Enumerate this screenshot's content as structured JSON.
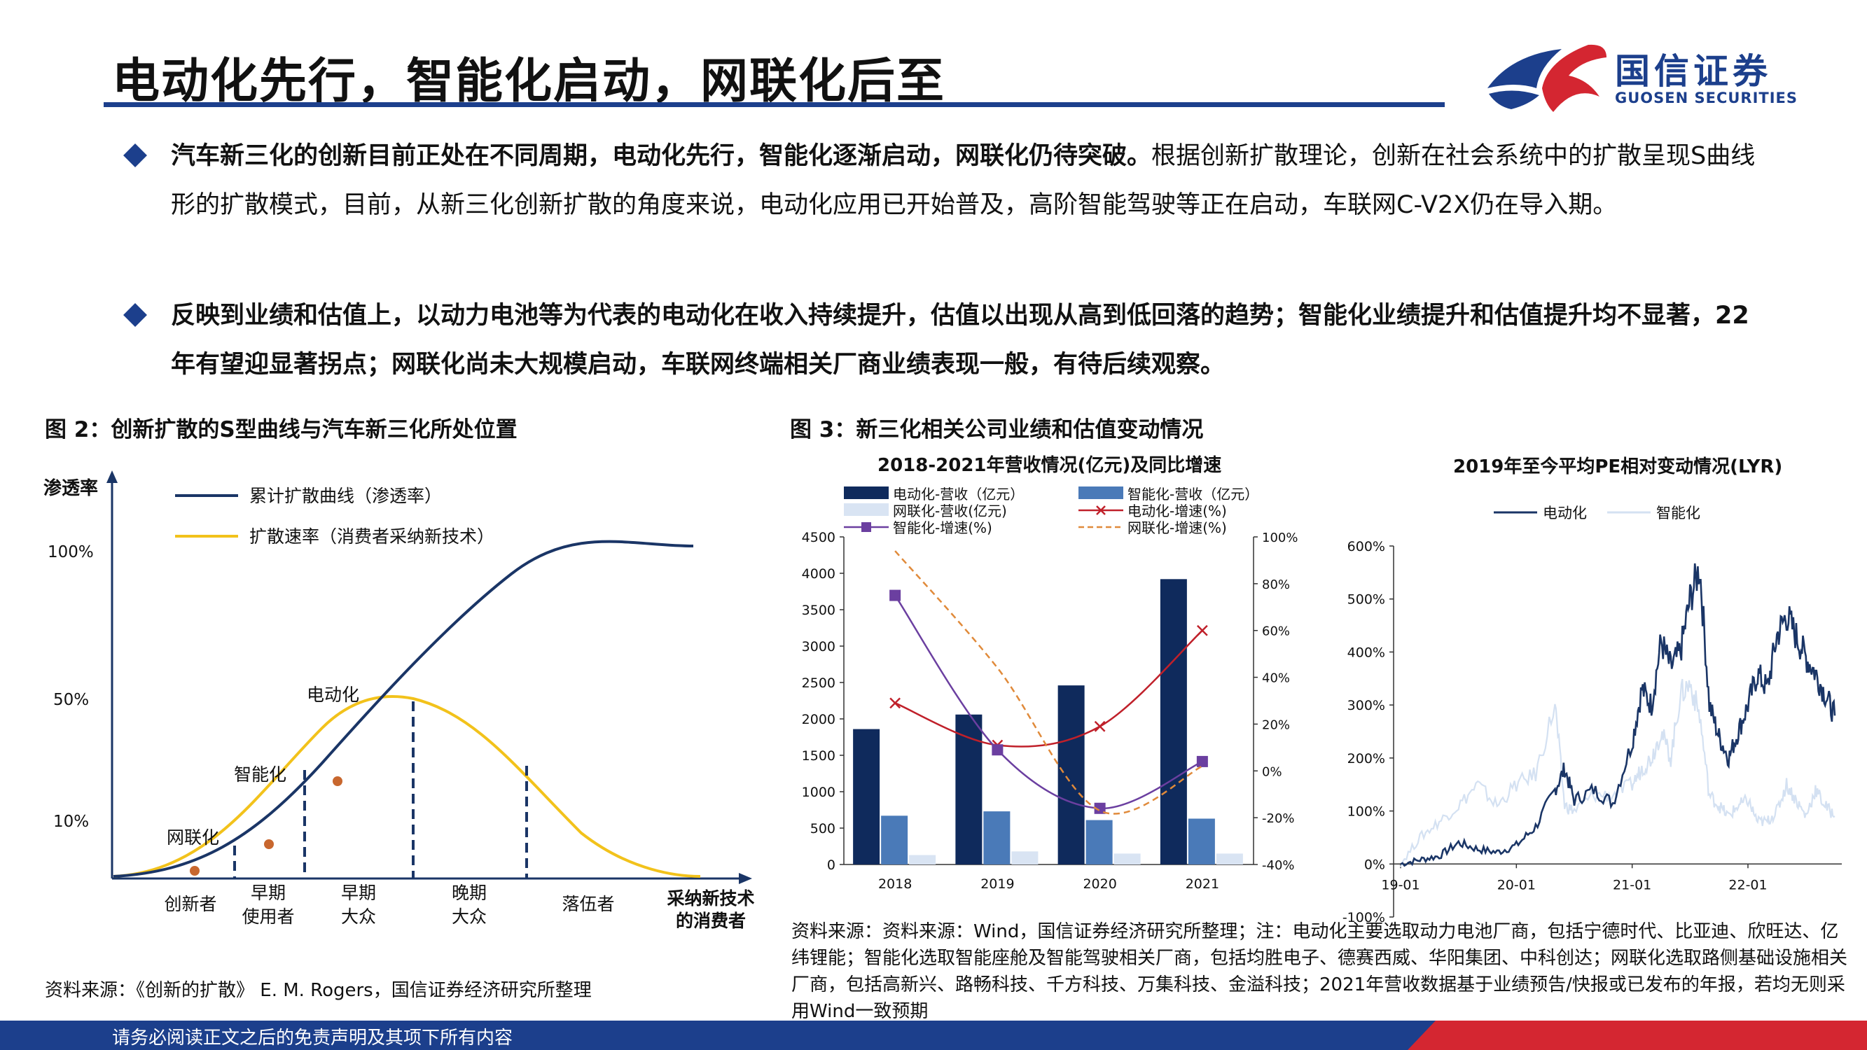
{
  "header": {
    "title": "电动化先行，智能化启动，网联化后至",
    "logo_cn": "国信证券",
    "logo_en": "GUOSEN SECURITIES"
  },
  "bullets": [
    {
      "bold": "汽车新三化的创新目前正处在不同周期，电动化先行，智能化逐渐启动，网联化仍待突破。",
      "text": "根据创新扩散理论，创新在社会系统中的扩散呈现S曲线形的扩散模式，目前，从新三化创新扩散的角度来说，电动化应用已开始普及，高阶智能驾驶等正在启动，车联网C-V2X仍在导入期。"
    },
    {
      "bold": "反映到业绩和估值上，以动力电池等为代表的电动化在收入持续提升，估值以出现从高到低回落的趋势；智能化业绩提升和估值提升均不显著，22年有望迎显著拐点；网联化尚未大规模启动，车联网终端相关厂商业绩表现一般，有待后续观察。",
      "text": ""
    }
  ],
  "figure2": {
    "title": "图 2：创新扩散的S型曲线与汽车新三化所处位置",
    "y_axis_label": "渗透率",
    "y_ticks": [
      "100%",
      "50%",
      "10%"
    ],
    "legend": [
      "累计扩散曲线（渗透率）",
      "扩散速率（消费者采纳新技术）"
    ],
    "markers": [
      "电动化",
      "智能化",
      "网联化"
    ],
    "segments": [
      "创新者",
      "早期\n使用者",
      "早期\n大众",
      "晚期\n大众",
      "落伍者",
      "采纳新技术\n的消费者"
    ],
    "source": "资料来源：《创新的扩散》 E. M. Rogers，国信证券经济研究所整理",
    "colors": {
      "s_curve": "#1a3566",
      "rate_curve": "#f2c21b",
      "dot": "#c8672e"
    }
  },
  "figure3": {
    "title": "图 3：新三化相关公司业绩和估值变动情况",
    "source": "资料来源：资料来源：Wind，国信证券经济研究所整理；注：电动化主要选取动力电池厂商，包括宁德时代、比亚迪、欣旺达、亿纬锂能；智能化选取智能座舱及智能驾驶相关厂商，包括均胜电子、德赛西威、华阳集团、中科创达；网联化选取路侧基础设施相关厂商，包括高新兴、路畅科技、千方科技、万集科技、金溢科技；2021年营收数据基于业绩预告/快报或已发布的年报，若均无则采用Wind一致预期"
  },
  "chart_data": [
    {
      "type": "bar",
      "title": "2018-2021年营收情况(亿元)及同比增速",
      "categories": [
        "2018",
        "2019",
        "2020",
        "2021"
      ],
      "ylim": [
        0,
        4500
      ],
      "y_ticks": [
        "0",
        "500",
        "1000",
        "1500",
        "2000",
        "2500",
        "3000",
        "3500",
        "4000",
        "4500"
      ],
      "y2lim": [
        -40,
        100
      ],
      "y2_ticks": [
        "-40%",
        "-20%",
        "0%",
        "20%",
        "40%",
        "60%",
        "80%",
        "100%"
      ],
      "series": [
        {
          "name": "电动化-营收（亿元）",
          "kind": "bar",
          "axis": "left",
          "color": "#0f2a5c",
          "values": [
            1860,
            2060,
            2460,
            3920
          ]
        },
        {
          "name": "智能化-营收（亿元）",
          "kind": "bar",
          "axis": "left",
          "color": "#4a7ab8",
          "values": [
            670,
            730,
            610,
            630
          ]
        },
        {
          "name": "网联化-营收(亿元)",
          "kind": "bar",
          "axis": "left",
          "color": "#d9e4f3",
          "values": [
            130,
            180,
            150,
            150
          ]
        },
        {
          "name": "电动化-增速(%)",
          "kind": "line",
          "axis": "right",
          "color": "#c0202a",
          "marker": "x",
          "values": [
            29,
            11,
            19,
            60
          ]
        },
        {
          "name": "智能化-增速(%)",
          "kind": "line",
          "axis": "right",
          "color": "#6b3fa0",
          "marker": "square",
          "values": [
            75,
            9,
            -16,
            4
          ]
        },
        {
          "name": "网联化-增速(%)",
          "kind": "line",
          "axis": "right",
          "color": "#e08a3a",
          "marker": "dash",
          "values": [
            94,
            44,
            -17,
            2
          ]
        }
      ]
    },
    {
      "type": "line",
      "title": "2019年至今平均PE相对变动情况(LYR)",
      "x_ticks": [
        "19-01",
        "20-01",
        "21-01",
        "22-01"
      ],
      "y_ticks": [
        "-100%",
        "0%",
        "100%",
        "200%",
        "300%",
        "400%",
        "500%",
        "600%"
      ],
      "ylim": [
        -100,
        600
      ],
      "series": [
        {
          "name": "电动化",
          "color": "#1a3566",
          "points": [
            [
              0,
              0
            ],
            [
              2,
              8
            ],
            [
              4,
              15
            ],
            [
              6,
              40
            ],
            [
              8,
              28
            ],
            [
              10,
              22
            ],
            [
              12,
              35
            ],
            [
              14,
              70
            ],
            [
              16,
              140
            ],
            [
              17,
              180
            ],
            [
              18,
              120
            ],
            [
              20,
              140
            ],
            [
              22,
              115
            ],
            [
              24,
              230
            ],
            [
              25,
              330
            ],
            [
              26,
              300
            ],
            [
              27,
              420
            ],
            [
              28,
              370
            ],
            [
              29,
              400
            ],
            [
              30,
              500
            ],
            [
              31,
              560
            ],
            [
              32,
              300
            ],
            [
              33,
              240
            ],
            [
              34,
              200
            ],
            [
              35,
              250
            ],
            [
              36,
              300
            ],
            [
              37,
              360
            ],
            [
              38,
              330
            ],
            [
              39,
              430
            ],
            [
              40,
              470
            ],
            [
              41,
              430
            ],
            [
              42,
              390
            ],
            [
              43,
              360
            ],
            [
              44,
              320
            ],
            [
              45,
              280
            ]
          ]
        },
        {
          "name": "智能化",
          "color": "#d4e1f2",
          "points": [
            [
              0,
              0
            ],
            [
              2,
              50
            ],
            [
              4,
              80
            ],
            [
              6,
              110
            ],
            [
              8,
              150
            ],
            [
              10,
              110
            ],
            [
              12,
              150
            ],
            [
              14,
              170
            ],
            [
              16,
              300
            ],
            [
              17,
              110
            ],
            [
              18,
              100
            ],
            [
              20,
              130
            ],
            [
              22,
              130
            ],
            [
              24,
              150
            ],
            [
              25,
              180
            ],
            [
              26,
              200
            ],
            [
              27,
              250
            ],
            [
              28,
              200
            ],
            [
              29,
              320
            ],
            [
              30,
              340
            ],
            [
              31,
              280
            ],
            [
              32,
              130
            ],
            [
              33,
              110
            ],
            [
              34,
              90
            ],
            [
              35,
              110
            ],
            [
              36,
              120
            ],
            [
              37,
              80
            ],
            [
              38,
              80
            ],
            [
              39,
              100
            ],
            [
              40,
              150
            ],
            [
              41,
              120
            ],
            [
              42,
              90
            ],
            [
              43,
              140
            ],
            [
              44,
              110
            ],
            [
              45,
              90
            ]
          ]
        }
      ]
    }
  ],
  "footer": {
    "disclaimer": "请务必阅读正文之后的免责声明及其项下所有内容",
    "colors": {
      "band": "#1c3f8c",
      "accent": "#d42631"
    }
  }
}
